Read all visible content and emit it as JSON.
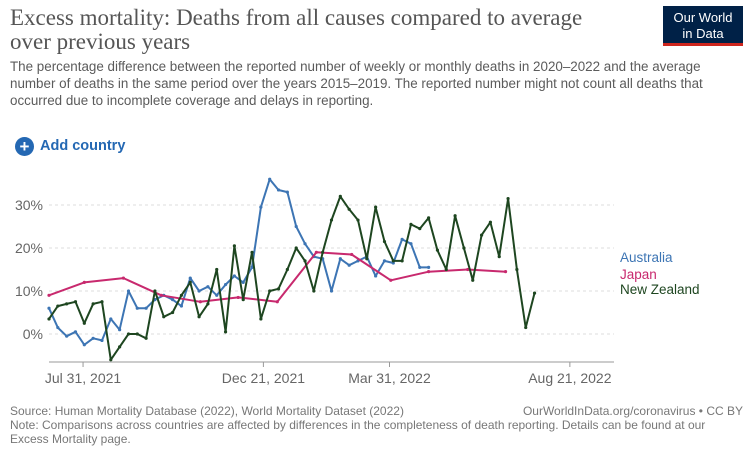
{
  "header": {
    "title": "Excess mortality: Deaths from all causes compared to average over previous years",
    "subtitle": "The percentage difference between the reported number of weekly or monthly deaths in 2020–2022 and the average number of deaths in the same period over the years 2015–2019. The reported number might not count all deaths that occurred due to incomplete coverage and delays in reporting.",
    "logo_line1": "Our World",
    "logo_line2": "in Data"
  },
  "controls": {
    "add_country_label": "Add country",
    "add_icon": "plus-circle-icon"
  },
  "footer": {
    "source": "Source: Human Mortality Database (2022), World Mortality Dataset (2022)",
    "url": "OurWorldInData.org/coronavirus • CC BY",
    "note": "Note: Comparisons across countries are affected by differences in the completeness of death reporting. Details can be found at our Excess Mortality page."
  },
  "colors": {
    "australia": "#3d75b4",
    "japan": "#c8296e",
    "new_zealand": "#1e4620",
    "grid": "#dddddd",
    "text": "#5b5b5b",
    "logo_bg": "#002147",
    "logo_accent": "#ce261e",
    "link": "#2468b3"
  },
  "chart_data": {
    "type": "line",
    "x_axis": {
      "type": "date",
      "range": [
        "2021-07-04",
        "2022-09-25"
      ],
      "ticks": [
        "2021-07-31",
        "2021-12-21",
        "2022-03-31",
        "2022-08-21"
      ],
      "tick_labels": [
        "Jul 31, 2021",
        "Dec 21, 2021",
        "Mar 31, 2022",
        "Aug 21, 2022"
      ]
    },
    "y_axis": {
      "range": [
        -6,
        36
      ],
      "ticks": [
        0,
        10,
        20,
        30
      ],
      "tick_labels": [
        "0%",
        "10%",
        "20%",
        "30%"
      ],
      "unit": "%"
    },
    "grid": true,
    "legend": "right, labels at line ends",
    "series": [
      {
        "name": "Australia",
        "color": "#3d75b4",
        "points": [
          [
            "2021-07-04",
            6
          ],
          [
            "2021-07-11",
            1.5
          ],
          [
            "2021-07-18",
            -0.5
          ],
          [
            "2021-07-25",
            0.5
          ],
          [
            "2021-08-01",
            -2.5
          ],
          [
            "2021-08-08",
            -1
          ],
          [
            "2021-08-15",
            -1.5
          ],
          [
            "2021-08-22",
            3.5
          ],
          [
            "2021-08-29",
            1
          ],
          [
            "2021-09-05",
            10
          ],
          [
            "2021-09-12",
            6
          ],
          [
            "2021-09-19",
            6
          ],
          [
            "2021-09-26",
            8
          ],
          [
            "2021-10-03",
            9
          ],
          [
            "2021-10-10",
            8
          ],
          [
            "2021-10-17",
            6.5
          ],
          [
            "2021-10-24",
            13
          ],
          [
            "2021-10-31",
            10
          ],
          [
            "2021-11-07",
            11
          ],
          [
            "2021-11-14",
            9
          ],
          [
            "2021-11-21",
            11.5
          ],
          [
            "2021-11-28",
            13.5
          ],
          [
            "2021-12-05",
            12
          ],
          [
            "2021-12-12",
            15.5
          ],
          [
            "2021-12-19",
            29.5
          ],
          [
            "2021-12-26",
            36
          ],
          [
            "2022-01-02",
            33.5
          ],
          [
            "2022-01-09",
            33
          ],
          [
            "2022-01-16",
            25
          ],
          [
            "2022-01-23",
            21
          ],
          [
            "2022-01-30",
            18
          ],
          [
            "2022-02-06",
            17.5
          ],
          [
            "2022-02-13",
            10
          ],
          [
            "2022-02-20",
            17.5
          ],
          [
            "2022-02-27",
            16
          ],
          [
            "2022-03-06",
            17
          ],
          [
            "2022-03-13",
            18
          ],
          [
            "2022-03-20",
            13.5
          ],
          [
            "2022-03-27",
            17
          ],
          [
            "2022-04-03",
            16.5
          ],
          [
            "2022-04-10",
            22
          ],
          [
            "2022-04-17",
            21
          ],
          [
            "2022-04-24",
            15.5
          ],
          [
            "2022-05-01",
            15.5
          ]
        ]
      },
      {
        "name": "Japan",
        "color": "#c8296e",
        "points": [
          [
            "2021-07-04",
            9
          ],
          [
            "2021-08-01",
            12
          ],
          [
            "2021-09-01",
            13
          ],
          [
            "2021-10-01",
            9
          ],
          [
            "2021-11-01",
            7.5
          ],
          [
            "2021-12-01",
            8.5
          ],
          [
            "2022-01-01",
            7.5
          ],
          [
            "2022-02-01",
            19
          ],
          [
            "2022-03-01",
            18.5
          ],
          [
            "2022-04-01",
            12.5
          ],
          [
            "2022-05-01",
            14.5
          ],
          [
            "2022-06-01",
            15
          ],
          [
            "2022-07-01",
            14.5
          ]
        ]
      },
      {
        "name": "New Zealand",
        "color": "#1e4620",
        "points": [
          [
            "2021-07-04",
            3.5
          ],
          [
            "2021-07-11",
            6.5
          ],
          [
            "2021-07-18",
            7
          ],
          [
            "2021-07-25",
            7.5
          ],
          [
            "2021-08-01",
            2.5
          ],
          [
            "2021-08-08",
            7
          ],
          [
            "2021-08-15",
            7.5
          ],
          [
            "2021-08-22",
            -6
          ],
          [
            "2021-08-29",
            -3
          ],
          [
            "2021-09-05",
            0
          ],
          [
            "2021-09-12",
            0
          ],
          [
            "2021-09-19",
            -1
          ],
          [
            "2021-09-26",
            10
          ],
          [
            "2021-10-03",
            4
          ],
          [
            "2021-10-10",
            5
          ],
          [
            "2021-10-17",
            9
          ],
          [
            "2021-10-24",
            12
          ],
          [
            "2021-10-31",
            4
          ],
          [
            "2021-11-07",
            7
          ],
          [
            "2021-11-14",
            15
          ],
          [
            "2021-11-21",
            0.5
          ],
          [
            "2021-11-28",
            20.5
          ],
          [
            "2021-12-05",
            8
          ],
          [
            "2021-12-12",
            19
          ],
          [
            "2021-12-19",
            3.5
          ],
          [
            "2021-12-26",
            10
          ],
          [
            "2022-01-02",
            10.5
          ],
          [
            "2022-01-09",
            15
          ],
          [
            "2022-01-16",
            20
          ],
          [
            "2022-01-23",
            17
          ],
          [
            "2022-01-30",
            10
          ],
          [
            "2022-02-06",
            19
          ],
          [
            "2022-02-13",
            26.5
          ],
          [
            "2022-02-20",
            32
          ],
          [
            "2022-02-27",
            29
          ],
          [
            "2022-03-06",
            26.5
          ],
          [
            "2022-03-13",
            17.5
          ],
          [
            "2022-03-20",
            29.5
          ],
          [
            "2022-03-27",
            21.5
          ],
          [
            "2022-04-03",
            17
          ],
          [
            "2022-04-10",
            17
          ],
          [
            "2022-04-17",
            25.5
          ],
          [
            "2022-04-24",
            24.5
          ],
          [
            "2022-05-01",
            27
          ],
          [
            "2022-05-08",
            19.5
          ],
          [
            "2022-05-15",
            15
          ],
          [
            "2022-05-22",
            27.5
          ],
          [
            "2022-05-29",
            20
          ],
          [
            "2022-06-05",
            12.5
          ],
          [
            "2022-06-12",
            23
          ],
          [
            "2022-06-19",
            26
          ],
          [
            "2022-06-26",
            18
          ],
          [
            "2022-07-03",
            31.5
          ],
          [
            "2022-07-10",
            15
          ],
          [
            "2022-07-17",
            1.5
          ],
          [
            "2022-07-24",
            9.5
          ]
        ]
      }
    ]
  }
}
